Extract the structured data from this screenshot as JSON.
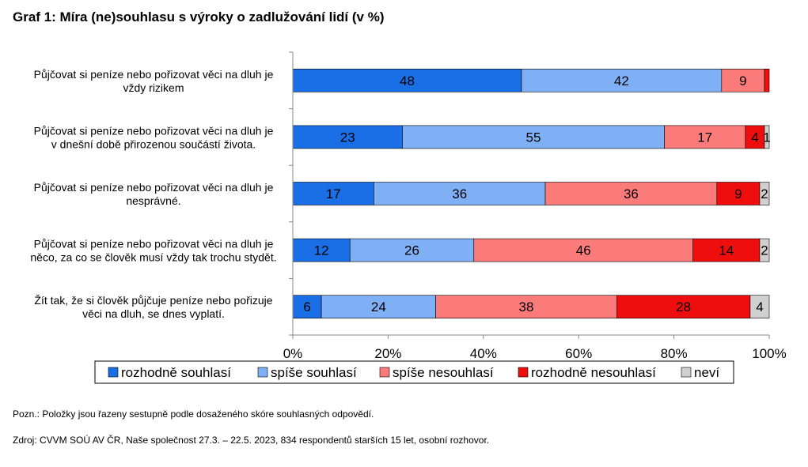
{
  "title": "Graf 1: Míra (ne)souhlasu s výroky o zadlužování lidí (v %)",
  "chart_data": {
    "type": "bar",
    "orientation": "horizontal",
    "stacked": true,
    "categories": [
      [
        "Půjčovat si peníze nebo pořizovat věci na dluh je",
        "vždy rizikem"
      ],
      [
        "Půjčovat si peníze nebo pořizovat věci na dluh je",
        "v dnešní době přirozenou součástí života."
      ],
      [
        "Půjčovat si peníze nebo pořizovat věci na dluh je",
        "nesprávné."
      ],
      [
        "Půjčovat si peníze nebo pořizovat věci na dluh je",
        "něco, za co se člověk musí vždy tak trochu stydět."
      ],
      [
        "Žít tak, že si člověk půjčuje peníze nebo pořizuje",
        "věci na dluh, se dnes vyplatí."
      ]
    ],
    "series": [
      {
        "name": "rozhodně souhlasí",
        "color": "#1a6ee6",
        "values": [
          48,
          23,
          17,
          12,
          6
        ]
      },
      {
        "name": "spíše souhlasí",
        "color": "#7fb0f5",
        "values": [
          42,
          55,
          36,
          26,
          24
        ]
      },
      {
        "name": "spíše nesouhlasí",
        "color": "#fb7b7b",
        "values": [
          9,
          17,
          36,
          46,
          38
        ]
      },
      {
        "name": "rozhodně nesouhlasí",
        "color": "#ee0e0e",
        "values": [
          1,
          4,
          9,
          14,
          28
        ]
      },
      {
        "name": "neví",
        "color": "#d0d0d0",
        "values": [
          0,
          1,
          2,
          2,
          4
        ]
      }
    ],
    "labels": [
      [
        "48",
        "42",
        "9",
        "",
        ""
      ],
      [
        "23",
        "55",
        "17",
        "4",
        "1"
      ],
      [
        "17",
        "36",
        "36",
        "9",
        "2"
      ],
      [
        "12",
        "26",
        "46",
        "14",
        "2"
      ],
      [
        "6",
        "24",
        "38",
        "28",
        "4"
      ]
    ],
    "xlim": [
      0,
      100
    ],
    "xticks": [
      "0%",
      "20%",
      "40%",
      "60%",
      "80%",
      "100%"
    ],
    "grid": false,
    "legend": "bottom"
  },
  "notes": {
    "pozn": "Pozn.: Položky jsou řazeny sestupně podle dosaženého skóre souhlasných odpovědí.",
    "zdroj": "Zdroj: CVVM SOÚ AV ČR, Naše společnost 27.3. – 22.5. 2023, 834 respondentů starších 15 let, osobní rozhovor."
  }
}
